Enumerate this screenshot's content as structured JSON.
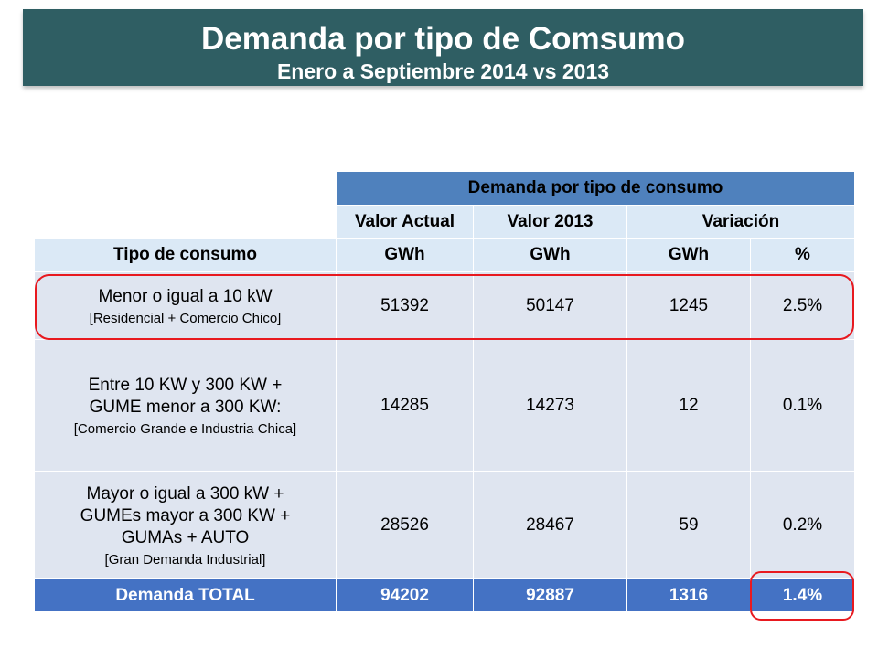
{
  "header": {
    "title": "Demanda por tipo de Comsumo",
    "subtitle": "Enero a Septiembre 2014 vs 2013"
  },
  "table": {
    "group_header": "Demanda por tipo de consumo",
    "col_valor_actual": "Valor Actual",
    "col_valor_2013": "Valor 2013",
    "col_variacion": "Variación",
    "units": {
      "tipo": "Tipo de consumo",
      "actual": "GWh",
      "y2013": "GWh",
      "var_gwh": "GWh",
      "var_pct": "%"
    },
    "rows": [
      {
        "line1": "Menor o igual a 10 kW",
        "note": "[Residencial + Comercio Chico]",
        "actual": "51392",
        "y2013": "50147",
        "var_gwh": "1245",
        "var_pct": "2.5%"
      },
      {
        "line1": "Entre 10 KW y 300 KW +",
        "line2": "GUME menor a 300 KW:",
        "note": "[Comercio Grande e Industria Chica]",
        "actual": "14285",
        "y2013": "14273",
        "var_gwh": "12",
        "var_pct": "0.1%"
      },
      {
        "line1": "Mayor o igual a 300 kW +",
        "line2": "GUMEs mayor a 300 KW +",
        "line3": "GUMAs + AUTO",
        "note": "[Gran Demanda Industrial]",
        "actual": "28526",
        "y2013": "28467",
        "var_gwh": "59",
        "var_pct": "0.2%"
      }
    ],
    "total": {
      "label": "Demanda TOTAL",
      "actual": "94202",
      "y2013": "92887",
      "var_gwh": "1316",
      "var_pct": "1.4%"
    }
  },
  "colors": {
    "banner": "#2f5e63",
    "header_blue": "#4f81bd",
    "header_light": "#dbe9f6",
    "cell": "#dfe5f0",
    "total": "#4472c4",
    "highlight": "#e8191f"
  }
}
